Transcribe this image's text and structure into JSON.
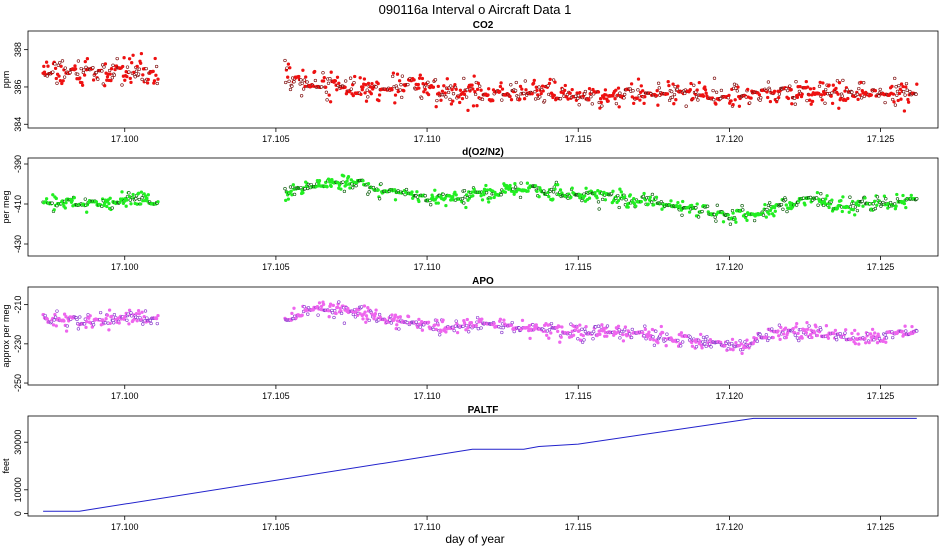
{
  "title": "090116a   Interval o Aircraft Data 1",
  "xlabel": "day of year",
  "chart_data": [
    {
      "type": "scatter",
      "title": "CO2",
      "ylabel": "ppm",
      "xlim": [
        17.0968,
        17.1269
      ],
      "ylim": [
        383.8,
        389.0
      ],
      "xticks": [
        "17.100",
        "17.105",
        "17.110",
        "17.115",
        "17.120",
        "17.125"
      ],
      "yticks": [
        "384",
        "386",
        "388"
      ],
      "color_fill": "#ee1111",
      "color_edge": "#770000",
      "segments": [
        {
          "x_start": 17.0973,
          "x_end": 17.1011,
          "level": [
            [
              17.0973,
              387.0
            ],
            [
              17.099,
              386.7
            ],
            [
              17.1002,
              386.9
            ],
            [
              17.1011,
              386.8
            ]
          ],
          "noise": 0.55,
          "seed": 1
        },
        {
          "x_start": 17.1053,
          "x_end": 17.1262,
          "level": [
            [
              17.1053,
              386.6
            ],
            [
              17.1065,
              386.2
            ],
            [
              17.108,
              385.9
            ],
            [
              17.1095,
              386.0
            ],
            [
              17.111,
              385.6
            ],
            [
              17.1125,
              385.7
            ],
            [
              17.114,
              385.8
            ],
            [
              17.1155,
              385.5
            ],
            [
              17.117,
              385.6
            ],
            [
              17.1185,
              385.7
            ],
            [
              17.12,
              385.6
            ],
            [
              17.1215,
              385.7
            ],
            [
              17.123,
              385.6
            ],
            [
              17.1245,
              385.7
            ],
            [
              17.1262,
              385.7
            ]
          ],
          "noise": 0.5,
          "seed": 2
        }
      ]
    },
    {
      "type": "scatter",
      "title": "d(O2/N2)",
      "ylabel": "per meg",
      "xlim": [
        17.0968,
        17.1269
      ],
      "ylim": [
        -436,
        -387
      ],
      "xticks": [
        "17.100",
        "17.105",
        "17.110",
        "17.115",
        "17.120",
        "17.125"
      ],
      "yticks": [
        "-430",
        "-410",
        "-390"
      ],
      "color_fill": "#22ee22",
      "color_edge": "#005500",
      "segments": [
        {
          "x_start": 17.0973,
          "x_end": 17.1011,
          "level": [
            [
              17.0973,
              -409
            ],
            [
              17.099,
              -410
            ],
            [
              17.1002,
              -407
            ],
            [
              17.1011,
              -409
            ]
          ],
          "noise": 3.2,
          "seed": 3
        },
        {
          "x_start": 17.1053,
          "x_end": 17.1262,
          "level": [
            [
              17.1053,
              -405
            ],
            [
              17.1062,
              -400
            ],
            [
              17.1075,
              -399
            ],
            [
              17.1085,
              -404
            ],
            [
              17.11,
              -407
            ],
            [
              17.111,
              -407
            ],
            [
              17.112,
              -404
            ],
            [
              17.113,
              -402
            ],
            [
              17.1145,
              -405
            ],
            [
              17.116,
              -407
            ],
            [
              17.1175,
              -409
            ],
            [
              17.119,
              -413
            ],
            [
              17.12,
              -416
            ],
            [
              17.121,
              -414
            ],
            [
              17.1225,
              -408
            ],
            [
              17.124,
              -411
            ],
            [
              17.1262,
              -408
            ]
          ],
          "noise": 3.0,
          "seed": 4
        }
      ]
    },
    {
      "type": "scatter",
      "title": "APO",
      "ylabel": "approx per meg",
      "xlim": [
        17.0968,
        17.1269
      ],
      "ylim": [
        -251,
        -201
      ],
      "xticks": [
        "17.100",
        "17.105",
        "17.110",
        "17.115",
        "17.120",
        "17.125"
      ],
      "yticks": [
        "-250",
        "-230",
        "-210"
      ],
      "color_fill": "#ee66ee",
      "color_edge": "#8833cc",
      "segments": [
        {
          "x_start": 17.0973,
          "x_end": 17.1011,
          "level": [
            [
              17.0973,
              -217
            ],
            [
              17.099,
              -219
            ],
            [
              17.1002,
              -216
            ],
            [
              17.1011,
              -217
            ]
          ],
          "noise": 3.2,
          "seed": 5
        },
        {
          "x_start": 17.1053,
          "x_end": 17.1262,
          "level": [
            [
              17.1053,
              -218
            ],
            [
              17.1062,
              -212
            ],
            [
              17.1075,
              -213
            ],
            [
              17.109,
              -219
            ],
            [
              17.1105,
              -222
            ],
            [
              17.112,
              -220
            ],
            [
              17.1135,
              -222
            ],
            [
              17.115,
              -224
            ],
            [
              17.1165,
              -224
            ],
            [
              17.118,
              -227
            ],
            [
              17.1195,
              -230
            ],
            [
              17.1205,
              -232
            ],
            [
              17.1215,
              -224
            ],
            [
              17.123,
              -224
            ],
            [
              17.1245,
              -228
            ],
            [
              17.1262,
              -223
            ]
          ],
          "noise": 3.0,
          "seed": 6
        }
      ]
    },
    {
      "type": "line",
      "title": "PALTF",
      "ylabel": "feet",
      "xlim": [
        17.0968,
        17.1269
      ],
      "ylim": [
        -1000,
        41000
      ],
      "xticks": [
        "17.100",
        "17.105",
        "17.110",
        "17.115",
        "17.120",
        "17.125"
      ],
      "yticks": [
        "0",
        "10000",
        "30000"
      ],
      "color": "#2222cc",
      "x": [
        17.0973,
        17.0985,
        17.1115,
        17.1132,
        17.1137,
        17.115,
        17.1208,
        17.1262
      ],
      "y": [
        1000,
        1000,
        27000,
        27000,
        28200,
        29200,
        40000,
        40000
      ]
    }
  ]
}
